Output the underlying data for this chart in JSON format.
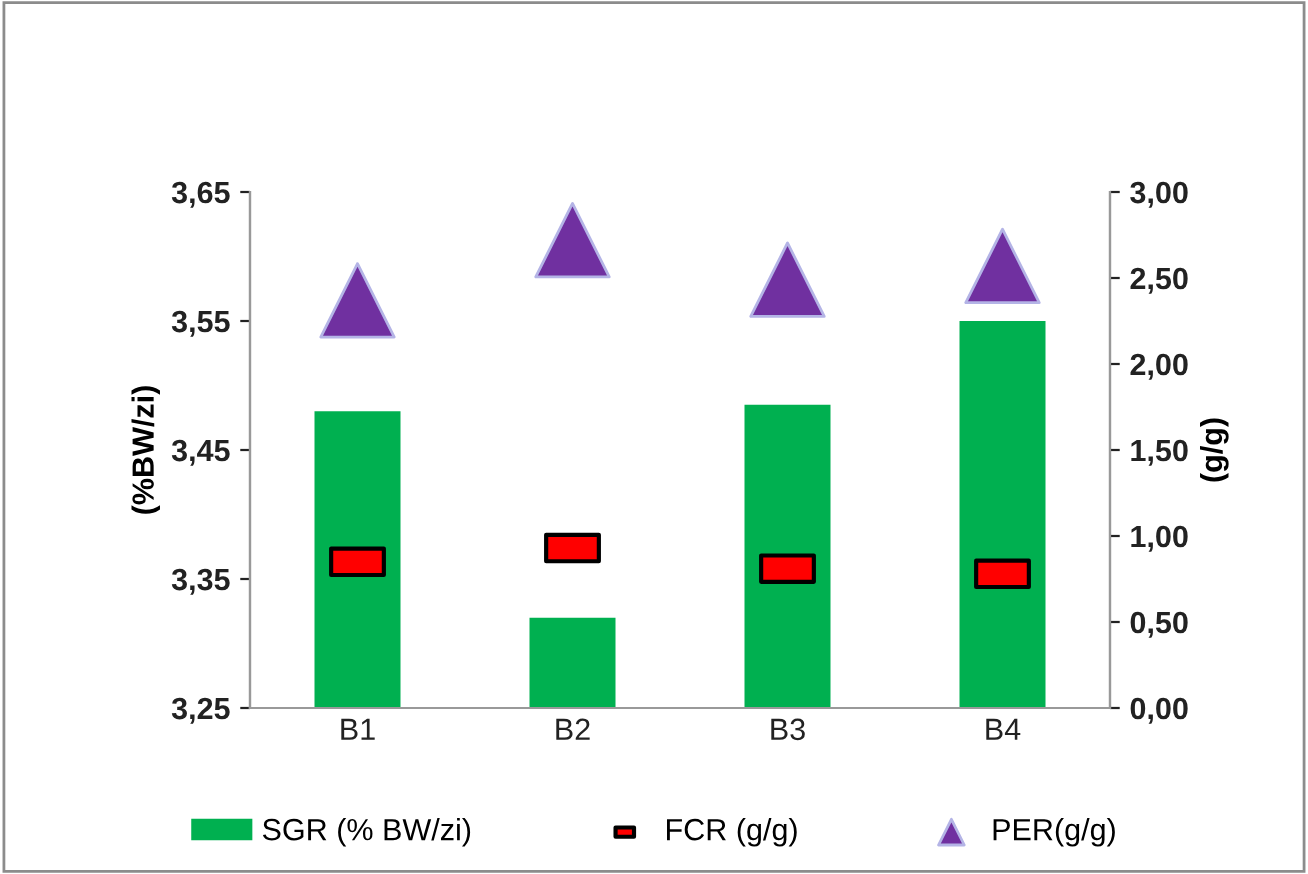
{
  "chart_data": {
    "type": "bar",
    "categories": [
      "B1",
      "B2",
      "B3",
      "B4"
    ],
    "ylabel": "(%BW/zi)",
    "y2label": "(g/g)",
    "ylim": [
      3.25,
      3.65
    ],
    "yticks": [
      {
        "value": 3.25,
        "label": "3,25"
      },
      {
        "value": 3.35,
        "label": "3,35"
      },
      {
        "value": 3.45,
        "label": "3,45"
      },
      {
        "value": 3.55,
        "label": "3,55"
      },
      {
        "value": 3.65,
        "label": "3,65"
      }
    ],
    "y2lim": [
      0,
      3
    ],
    "y2ticks": [
      {
        "value": 0,
        "label": "0,00"
      },
      {
        "value": 0.5,
        "label": "0,50"
      },
      {
        "value": 1,
        "label": "1,00"
      },
      {
        "value": 1.5,
        "label": "1,50"
      },
      {
        "value": 2,
        "label": "2,00"
      },
      {
        "value": 2.5,
        "label": "2,50"
      },
      {
        "value": 3,
        "label": "3,00"
      }
    ],
    "legend": "bottom",
    "grid": false,
    "series": [
      {
        "name": "SGR (% BW/zi)",
        "color": "#00b050",
        "values": [
          3.48,
          3.32,
          3.485,
          3.55
        ]
      },
      {
        "name": "FCR (g/g)",
        "type": "scatter",
        "axis": "y2",
        "marker": "square",
        "color": "#ff0000",
        "values": [
          0.85,
          0.93,
          0.81,
          0.78
        ]
      },
      {
        "name": "PER(g/g)",
        "type": "scatter",
        "axis": "y2",
        "marker": "triangle",
        "color": "#7030a0",
        "values": [
          2.37,
          2.72,
          2.49,
          2.57
        ]
      }
    ]
  }
}
